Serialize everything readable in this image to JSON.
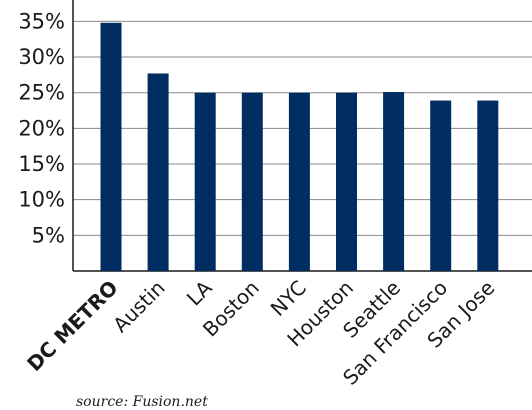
{
  "chart_data": {
    "type": "bar",
    "categories": [
      "DC METRO",
      "Austin",
      "LA",
      "Boston",
      "NYC",
      "Houston",
      "Seattle",
      "San Francisco",
      "San Jose"
    ],
    "values": [
      34.8,
      27.7,
      25.0,
      25.0,
      25.0,
      25.0,
      25.1,
      23.9,
      23.9
    ],
    "yticks": [
      "5%",
      "10%",
      "15%",
      "20%",
      "25%",
      "30%",
      "35%"
    ],
    "ytick_values": [
      5,
      10,
      15,
      20,
      25,
      30,
      35
    ],
    "ylim": [
      0,
      38
    ],
    "grid": true,
    "bar_color": "#002d62",
    "highlight_category": "DC METRO"
  },
  "source_note": "source: Fusion.net"
}
